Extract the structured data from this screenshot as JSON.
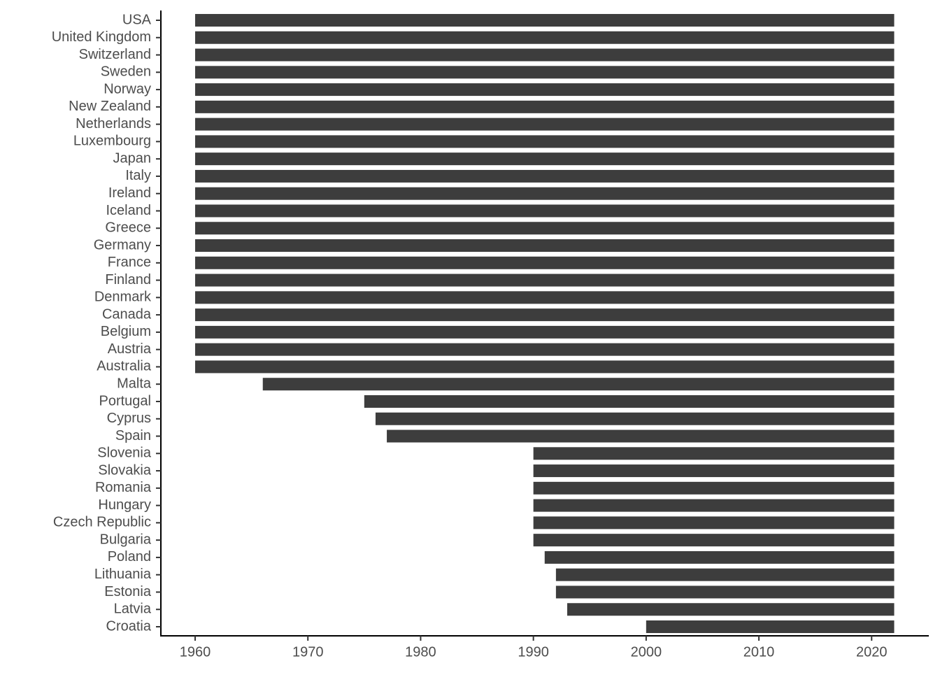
{
  "chart_data": {
    "type": "range-bar",
    "categories": [
      "USA",
      "United Kingdom",
      "Switzerland",
      "Sweden",
      "Norway",
      "New Zealand",
      "Netherlands",
      "Luxembourg",
      "Japan",
      "Italy",
      "Ireland",
      "Iceland",
      "Greece",
      "Germany",
      "France",
      "Finland",
      "Denmark",
      "Canada",
      "Belgium",
      "Austria",
      "Australia",
      "Malta",
      "Portugal",
      "Cyprus",
      "Spain",
      "Slovenia",
      "Slovakia",
      "Romania",
      "Hungary",
      "Czech Republic",
      "Bulgaria",
      "Poland",
      "Lithuania",
      "Estonia",
      "Latvia",
      "Croatia"
    ],
    "start": [
      1960,
      1960,
      1960,
      1960,
      1960,
      1960,
      1960,
      1960,
      1960,
      1960,
      1960,
      1960,
      1960,
      1960,
      1960,
      1960,
      1960,
      1960,
      1960,
      1960,
      1960,
      1966,
      1975,
      1976,
      1977,
      1990,
      1990,
      1990,
      1990,
      1990,
      1990,
      1991,
      1992,
      1992,
      1993,
      2000
    ],
    "end": [
      2022,
      2022,
      2022,
      2022,
      2022,
      2022,
      2022,
      2022,
      2022,
      2022,
      2022,
      2022,
      2022,
      2022,
      2022,
      2022,
      2022,
      2022,
      2022,
      2022,
      2022,
      2022,
      2022,
      2022,
      2022,
      2022,
      2022,
      2022,
      2022,
      2022,
      2022,
      2022,
      2022,
      2022,
      2022,
      2022
    ],
    "color": "#3d3d3d",
    "xlim": [
      1956.96,
      2025.07
    ],
    "xticks": [
      1960,
      1970,
      1980,
      1990,
      2000,
      2010,
      2020
    ],
    "grid": false
  }
}
